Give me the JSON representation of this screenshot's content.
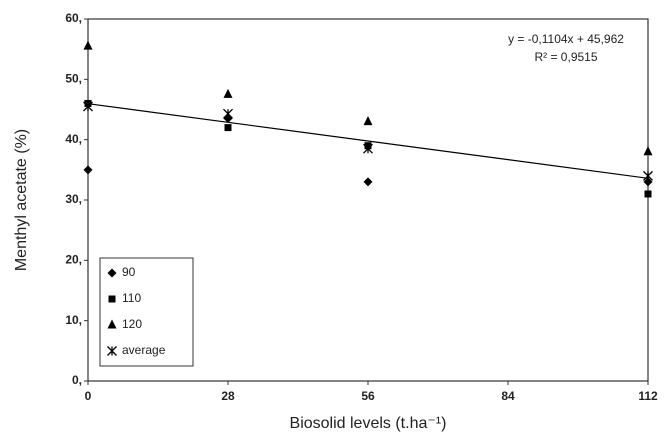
{
  "chart_data": {
    "type": "scatter",
    "x_label": "Biosolid levels (t.ha⁻¹)",
    "y_label": "Menthyl acetate (%)",
    "x": [
      0,
      28,
      56,
      112
    ],
    "series": [
      {
        "name": "90",
        "color": "#000000",
        "marker": "diamond",
        "values": [
          35,
          43.5,
          33,
          33
        ]
      },
      {
        "name": "110",
        "color": "#000000",
        "marker": "square",
        "values": [
          46,
          42,
          39,
          31
        ]
      },
      {
        "name": "120",
        "color": "#000000",
        "marker": "triangle",
        "values": [
          55.5,
          47.5,
          43,
          38
        ]
      },
      {
        "name": "average",
        "color": "#000000",
        "marker": "asterisk",
        "values": [
          45.5,
          44.3,
          38.5,
          34
        ]
      }
    ],
    "trendline": {
      "slope": -0.1104,
      "intercept": 45.962,
      "color": "#000000"
    },
    "annotations": [
      "y = -0,1104x + 45,962",
      "R² = 0,9515"
    ],
    "xlim": [
      0,
      112
    ],
    "xticks": [
      0,
      28,
      56,
      84,
      112
    ],
    "ylim": [
      0,
      60
    ],
    "yticks": [
      {
        "value": 0,
        "label": "0,"
      },
      {
        "value": 10,
        "label": "10,"
      },
      {
        "value": 20,
        "label": "20,"
      },
      {
        "value": 30,
        "label": "30,"
      },
      {
        "value": 40,
        "label": "40,"
      },
      {
        "value": 50,
        "label": "50,"
      },
      {
        "value": 60,
        "label": "60,"
      }
    ],
    "grid": false,
    "legend": "lower-left"
  }
}
